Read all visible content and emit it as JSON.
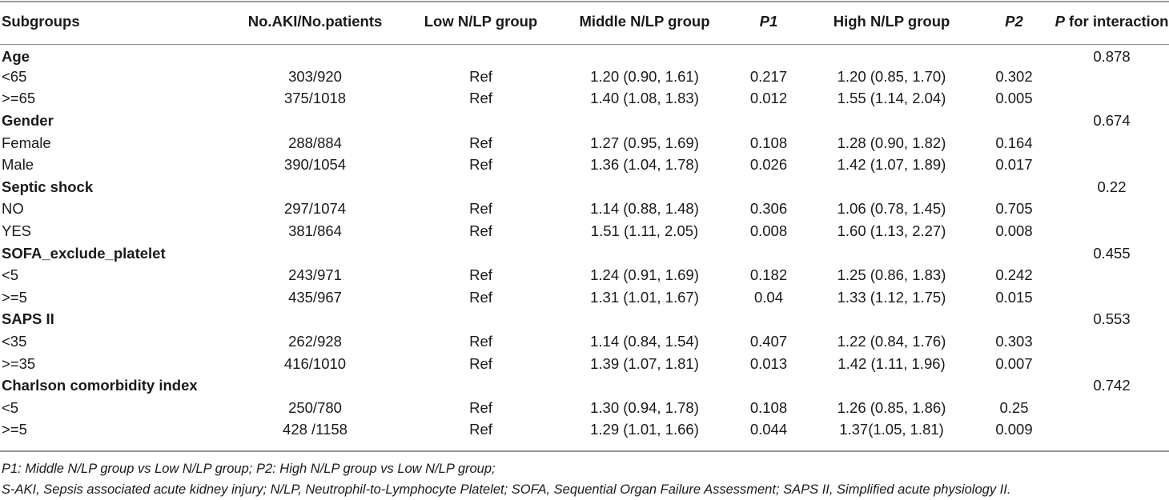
{
  "headers": [
    "Subgroups",
    "No.AKI/No.patients",
    "Low N/LP group",
    "Middle N/LP group",
    "P1",
    "High N/LP group",
    "P2",
    "for interaction"
  ],
  "header_p_prefix": "P",
  "groups": [
    {
      "name": "Age",
      "interaction": "0.878",
      "rows": [
        {
          "sub": "<65",
          "n": "303/920",
          "low": "Ref",
          "mid": "1.20 (0.90, 1.61)",
          "p1": "0.217",
          "high": "1.20 (0.85, 1.70)",
          "p2": "0.302"
        },
        {
          "sub": ">=65",
          "n": "375/1018",
          "low": "Ref",
          "mid": "1.40 (1.08, 1.83)",
          "p1": "0.012",
          "high": "1.55 (1.14, 2.04)",
          "p2": "0.005"
        }
      ]
    },
    {
      "name": "Gender",
      "interaction": "0.674",
      "rows": [
        {
          "sub": "Female",
          "n": "288/884",
          "low": "Ref",
          "mid": "1.27 (0.95, 1.69)",
          "p1": "0.108",
          "high": "1.28 (0.90, 1.82)",
          "p2": "0.164"
        },
        {
          "sub": "Male",
          "n": "390/1054",
          "low": "Ref",
          "mid": "1.36 (1.04, 1.78)",
          "p1": "0.026",
          "high": "1.42 (1.07, 1.89)",
          "p2": "0.017"
        }
      ]
    },
    {
      "name": "Septic shock",
      "interaction": "0.22",
      "rows": [
        {
          "sub": "NO",
          "n": "297/1074",
          "low": "Ref",
          "mid": "1.14 (0.88, 1.48)",
          "p1": "0.306",
          "high": "1.06 (0.78, 1.45)",
          "p2": "0.705"
        },
        {
          "sub": "YES",
          "n": "381/864",
          "low": "Ref",
          "mid": "1.51 (1.11, 2.05)",
          "p1": "0.008",
          "high": "1.60 (1.13, 2.27)",
          "p2": "0.008"
        }
      ]
    },
    {
      "name": "SOFA_exclude_platelet",
      "interaction": "0.455",
      "rows": [
        {
          "sub": "<5",
          "n": "243/971",
          "low": "Ref",
          "mid": "1.24 (0.91, 1.69)",
          "p1": "0.182",
          "high": "1.25 (0.86, 1.83)",
          "p2": "0.242"
        },
        {
          "sub": ">=5",
          "n": "435/967",
          "low": "Ref",
          "mid": "1.31 (1.01, 1.67)",
          "p1": "0.04",
          "high": "1.33 (1.12, 1.75)",
          "p2": "0.015"
        }
      ]
    },
    {
      "name": "SAPS II",
      "interaction": "0.553",
      "rows": [
        {
          "sub": "<35",
          "n": "262/928",
          "low": "Ref",
          "mid": "1.14 (0.84, 1.54)",
          "p1": "0.407",
          "high": "1.22 (0.84, 1.76)",
          "p2": "0.303"
        },
        {
          "sub": ">=35",
          "n": "416/1010",
          "low": "Ref",
          "mid": "1.39 (1.07, 1.81)",
          "p1": "0.013",
          "high": "1.42 (1.11, 1.96)",
          "p2": "0.007"
        }
      ]
    },
    {
      "name": "Charlson comorbidity index",
      "interaction": "0.742",
      "rows": [
        {
          "sub": "<5",
          "n": "250/780",
          "low": "Ref",
          "mid": "1.30 (0.94, 1.78)",
          "p1": "0.108",
          "high": "1.26 (0.85, 1.86)",
          "p2": "0.25"
        },
        {
          "sub": ">=5",
          "n": "428 /1158",
          "low": "Ref",
          "mid": "1.29 (1.01, 1.66)",
          "p1": "0.044",
          "high": "1.37(1.05, 1.81)",
          "p2": "0.009"
        }
      ]
    }
  ],
  "footnotes": [
    "P1: Middle N/LP group vs Low N/LP group; P2: High N/LP group vs Low N/LP group;",
    "S-AKI, Sepsis associated acute kidney injury; N/LP, Neutrophil-to-Lymphocyte Platelet; SOFA, Sequential Organ Failure Assessment; SAPS II, Simplified acute physiology II."
  ]
}
